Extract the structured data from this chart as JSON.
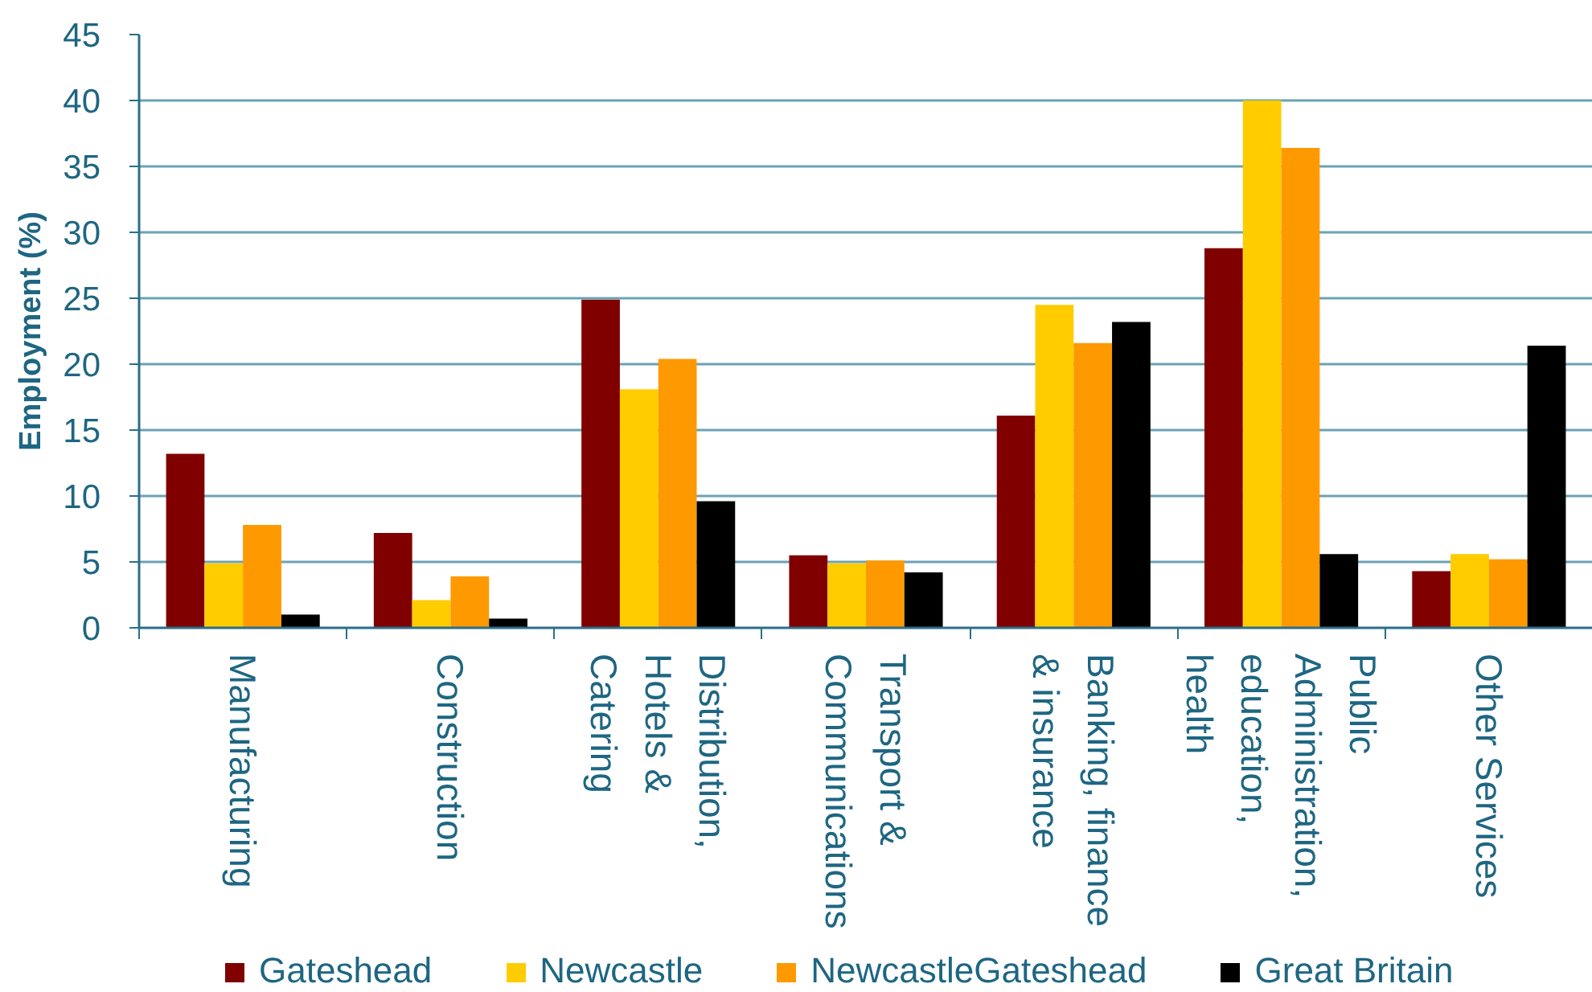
{
  "chart_data": {
    "type": "bar",
    "ylabel": "Employment (%)",
    "categories": [
      "Manufacturing",
      "Construction",
      "Distribution, Hotels & Catering",
      "Transport & Communications",
      "Banking, finance & insurance",
      "Public Administration, education, health",
      "Other Services"
    ],
    "series": [
      {
        "name": "Gateshead",
        "color": "#800000",
        "values": [
          13.2,
          7.2,
          24.9,
          5.5,
          16.1,
          28.8,
          4.3
        ]
      },
      {
        "name": "Newcastle",
        "color": "#ffcc00",
        "values": [
          4.9,
          2.1,
          18.1,
          4.9,
          24.5,
          40.0,
          5.6
        ]
      },
      {
        "name": "NewcastleGateshead",
        "color": "#ff9900",
        "values": [
          7.8,
          3.9,
          20.4,
          5.1,
          21.6,
          36.4,
          5.2
        ]
      },
      {
        "name": "Great Britain",
        "color": "#000000",
        "values": [
          1.0,
          0.7,
          9.6,
          4.2,
          23.2,
          5.6,
          21.4
        ]
      }
    ],
    "ylim": [
      0,
      45
    ],
    "yticks": [
      0,
      5,
      10,
      15,
      20,
      25,
      30,
      35,
      40,
      45
    ],
    "grid": "y",
    "legend": "bottom"
  }
}
